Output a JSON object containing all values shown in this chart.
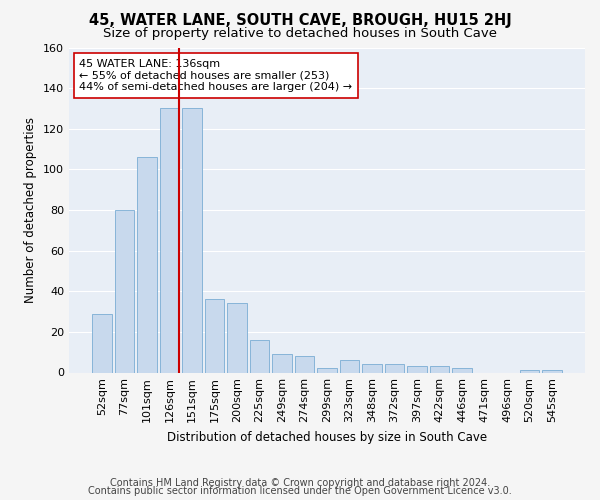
{
  "title": "45, WATER LANE, SOUTH CAVE, BROUGH, HU15 2HJ",
  "subtitle": "Size of property relative to detached houses in South Cave",
  "xlabel": "Distribution of detached houses by size in South Cave",
  "ylabel": "Number of detached properties",
  "bar_color": "#c8d9ed",
  "bar_edge_color": "#7aadd4",
  "background_color": "#e8eef6",
  "grid_color": "#ffffff",
  "fig_background": "#f5f5f5",
  "categories": [
    "52sqm",
    "77sqm",
    "101sqm",
    "126sqm",
    "151sqm",
    "175sqm",
    "200sqm",
    "225sqm",
    "249sqm",
    "274sqm",
    "299sqm",
    "323sqm",
    "348sqm",
    "372sqm",
    "397sqm",
    "422sqm",
    "446sqm",
    "471sqm",
    "496sqm",
    "520sqm",
    "545sqm"
  ],
  "values": [
    29,
    80,
    106,
    130,
    130,
    36,
    34,
    16,
    9,
    8,
    2,
    6,
    4,
    4,
    3,
    3,
    2,
    0,
    0,
    1,
    1
  ],
  "property_line_color": "#cc0000",
  "annotation_line1": "45 WATER LANE: 136sqm",
  "annotation_line2": "← 55% of detached houses are smaller (253)",
  "annotation_line3": "44% of semi-detached houses are larger (204) →",
  "annotation_box_color": "#ffffff",
  "annotation_box_edge_color": "#cc0000",
  "footer_line1": "Contains HM Land Registry data © Crown copyright and database right 2024.",
  "footer_line2": "Contains public sector information licensed under the Open Government Licence v3.0.",
  "ylim": [
    0,
    160
  ],
  "yticks": [
    0,
    20,
    40,
    60,
    80,
    100,
    120,
    140,
    160
  ],
  "title_fontsize": 10.5,
  "subtitle_fontsize": 9.5,
  "axis_label_fontsize": 8.5,
  "tick_fontsize": 8,
  "annotation_fontsize": 8,
  "footer_fontsize": 7
}
